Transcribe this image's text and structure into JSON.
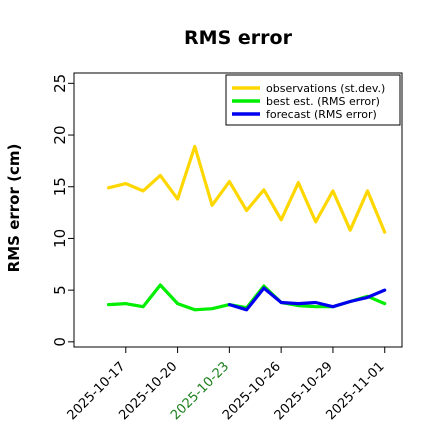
{
  "chart_data": {
    "type": "line",
    "title": "RMS error",
    "ylabel": "RMS error (cm)",
    "xlabel": "",
    "ylim": [
      -0.5,
      26
    ],
    "yticks": [
      0,
      5,
      10,
      15,
      20,
      25
    ],
    "xlim": [
      "2025-10-14",
      "2025-11-02"
    ],
    "xticks": [
      {
        "date": "2025-10-17",
        "label": "2025-10-17",
        "color": "#000000"
      },
      {
        "date": "2025-10-20",
        "label": "2025-10-20",
        "color": "#000000"
      },
      {
        "date": "2025-10-23",
        "label": "2025-10-23",
        "color": "#1a7f1a"
      },
      {
        "date": "2025-10-26",
        "label": "2025-10-26",
        "color": "#000000"
      },
      {
        "date": "2025-10-29",
        "label": "2025-10-29",
        "color": "#000000"
      },
      {
        "date": "2025-11-01",
        "label": "2025-11-01",
        "color": "#000000"
      }
    ],
    "grid": false,
    "legend_position": "top-right",
    "series": [
      {
        "name": "observations (st.dev.)",
        "color": "#ffd700",
        "points": [
          {
            "x": "2025-10-16",
            "y": 14.9
          },
          {
            "x": "2025-10-17",
            "y": 15.3
          },
          {
            "x": "2025-10-18",
            "y": 14.6
          },
          {
            "x": "2025-10-19",
            "y": 16.1
          },
          {
            "x": "2025-10-20",
            "y": 13.8
          },
          {
            "x": "2025-10-21",
            "y": 18.9
          },
          {
            "x": "2025-10-22",
            "y": 13.2
          },
          {
            "x": "2025-10-23",
            "y": 15.5
          },
          {
            "x": "2025-10-24",
            "y": 12.7
          },
          {
            "x": "2025-10-25",
            "y": 14.7
          },
          {
            "x": "2025-10-26",
            "y": 11.8
          },
          {
            "x": "2025-10-27",
            "y": 15.4
          },
          {
            "x": "2025-10-28",
            "y": 11.6
          },
          {
            "x": "2025-10-29",
            "y": 14.6
          },
          {
            "x": "2025-10-30",
            "y": 10.8
          },
          {
            "x": "2025-10-31",
            "y": 14.6
          },
          {
            "x": "2025-11-01",
            "y": 10.6
          }
        ]
      },
      {
        "name": "best est. (RMS error)",
        "color": "#00ee00",
        "points": [
          {
            "x": "2025-10-16",
            "y": 3.6
          },
          {
            "x": "2025-10-17",
            "y": 3.7
          },
          {
            "x": "2025-10-18",
            "y": 3.4
          },
          {
            "x": "2025-10-19",
            "y": 5.5
          },
          {
            "x": "2025-10-20",
            "y": 3.7
          },
          {
            "x": "2025-10-21",
            "y": 3.1
          },
          {
            "x": "2025-10-22",
            "y": 3.2
          },
          {
            "x": "2025-10-23",
            "y": 3.6
          },
          {
            "x": "2025-10-24",
            "y": 3.3
          },
          {
            "x": "2025-10-25",
            "y": 5.4
          },
          {
            "x": "2025-10-26",
            "y": 3.8
          },
          {
            "x": "2025-10-27",
            "y": 3.5
          },
          {
            "x": "2025-10-28",
            "y": 3.4
          },
          {
            "x": "2025-10-29",
            "y": 3.4
          },
          {
            "x": "2025-10-30",
            "y": 3.9
          },
          {
            "x": "2025-10-31",
            "y": 4.4
          },
          {
            "x": "2025-11-01",
            "y": 3.7
          }
        ]
      },
      {
        "name": "forecast (RMS error)",
        "color": "#0000ee",
        "points": [
          {
            "x": "2025-10-23",
            "y": 3.6
          },
          {
            "x": "2025-10-24",
            "y": 3.1
          },
          {
            "x": "2025-10-25",
            "y": 5.2
          },
          {
            "x": "2025-10-26",
            "y": 3.8
          },
          {
            "x": "2025-10-27",
            "y": 3.7
          },
          {
            "x": "2025-10-28",
            "y": 3.8
          },
          {
            "x": "2025-10-29",
            "y": 3.4
          },
          {
            "x": "2025-10-30",
            "y": 3.9
          },
          {
            "x": "2025-10-31",
            "y": 4.3
          },
          {
            "x": "2025-11-01",
            "y": 5.0
          }
        ]
      }
    ]
  }
}
